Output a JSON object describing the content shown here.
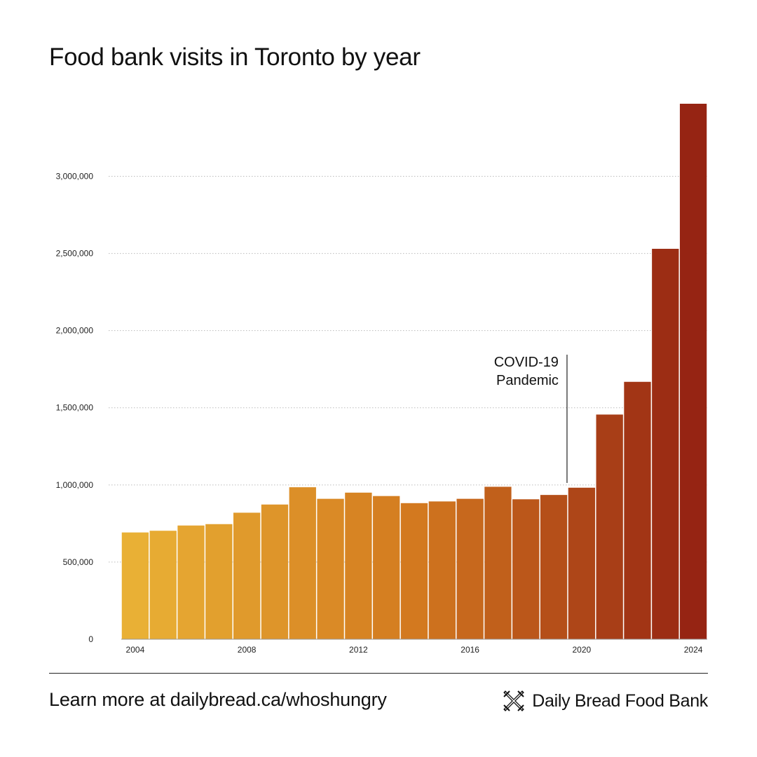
{
  "title": "Food bank visits in Toronto by year",
  "footer": {
    "link_text": "Learn more at dailybread.ca/whoshungry",
    "brand_name": "Daily Bread Food Bank",
    "logo_icon": "daily-bread-x-icon"
  },
  "colors": {
    "bar_start": "#E9B035",
    "bar_mid": "#D3791F",
    "bar_end": "#962413",
    "grid": "#BBBBBB",
    "text": "#111111"
  },
  "chart_data": {
    "type": "bar",
    "title": "Food bank visits in Toronto by year",
    "xlabel": "",
    "ylabel": "",
    "categories": [
      "2004",
      "2005",
      "2006",
      "2007",
      "2008",
      "2009",
      "2010",
      "2011",
      "2012",
      "2013",
      "2014",
      "2015",
      "2016",
      "2017",
      "2018",
      "2019",
      "2020",
      "2021",
      "2022",
      "2023",
      "2024"
    ],
    "x_tick_labels": [
      "2004",
      "2008",
      "2012",
      "2016",
      "2020",
      "2024"
    ],
    "values": [
      692000,
      703000,
      737000,
      746000,
      820000,
      873000,
      985000,
      910000,
      950000,
      928000,
      882000,
      893000,
      910000,
      988000,
      907000,
      935000,
      982000,
      1456000,
      1668000,
      2530000,
      3470000
    ],
    "ylim": [
      0,
      3470000
    ],
    "y_ticks": [
      0,
      500000,
      1000000,
      1500000,
      2000000,
      2500000,
      3000000
    ],
    "y_tick_labels": [
      "0",
      "500,000",
      "1,000,000",
      "1,500,000",
      "2,000,000",
      "2,500,000",
      "3,000,000"
    ],
    "grid": true,
    "annotation": {
      "lines": [
        "COVID-19",
        "Pandemic"
      ],
      "at_category": "2020"
    }
  }
}
